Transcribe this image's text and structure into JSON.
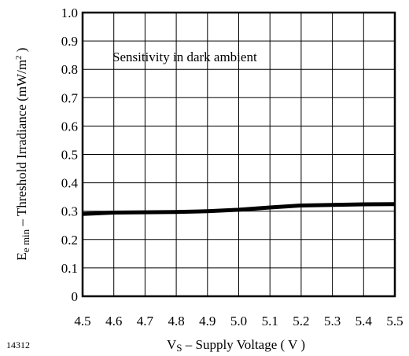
{
  "figure_id": "14312",
  "chart_data": {
    "type": "line",
    "title": "",
    "annotation": "Sensitivity in dark ambient",
    "xlabel": {
      "symbol": "V",
      "subscript": "S",
      "text": " – Supply Voltage ( V )"
    },
    "ylabel": {
      "symbol": "E",
      "subscript": "e min",
      "text": " – Threshold Irradiance (mW/m",
      "superscript": "2",
      "text_end": " )"
    },
    "xlim": [
      4.5,
      5.5
    ],
    "ylim": [
      0,
      1.0
    ],
    "x_ticks": [
      "4.5",
      "4.6",
      "4.7",
      "4.8",
      "4.9",
      "5.0",
      "5.1",
      "5.2",
      "5.3",
      "5.4",
      "5.5"
    ],
    "y_ticks": [
      "0",
      "0.1",
      "0.2",
      "0.3",
      "0.4",
      "0.5",
      "0.6",
      "0.7",
      "0.8",
      "0.9",
      "1.0"
    ],
    "grid": true,
    "legend": "none",
    "line_color": "#000000",
    "series": [
      {
        "x": [
          4.5,
          4.6,
          4.7,
          4.8,
          4.9,
          5.0,
          5.1,
          5.2,
          5.3,
          5.4,
          5.5
        ],
        "y": [
          0.29,
          0.295,
          0.296,
          0.297,
          0.3,
          0.305,
          0.313,
          0.32,
          0.322,
          0.324,
          0.325
        ]
      }
    ]
  }
}
